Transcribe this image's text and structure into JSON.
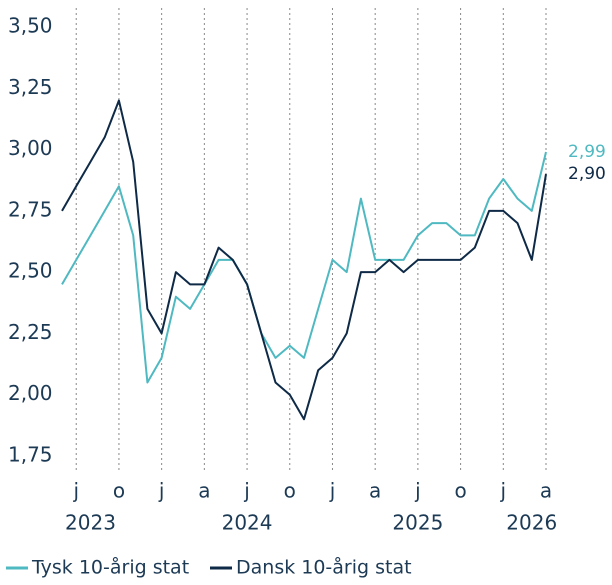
{
  "chart_data": {
    "type": "line",
    "x": [
      "2023-06",
      "2023-07",
      "2023-08",
      "2023-09",
      "2023-10",
      "2023-11",
      "2023-12",
      "2024-01",
      "2024-02",
      "2024-03",
      "2024-04",
      "2024-05",
      "2024-06",
      "2024-07",
      "2024-08",
      "2024-09",
      "2024-10",
      "2024-11",
      "2024-12",
      "2025-01",
      "2025-02",
      "2025-03",
      "2025-04",
      "2025-05",
      "2025-06",
      "2025-07",
      "2025-08",
      "2025-09",
      "2025-10",
      "2025-11",
      "2025-12",
      "2026-01",
      "2026-02",
      "2026-03",
      "2026-04"
    ],
    "series": [
      {
        "name": "Tysk 10-årig stat",
        "color": "#4fb9c1",
        "end_label": "2,99",
        "values": [
          2.45,
          2.55,
          2.65,
          2.75,
          2.85,
          2.65,
          2.05,
          2.15,
          2.4,
          2.35,
          2.45,
          2.55,
          2.55,
          2.45,
          2.25,
          2.15,
          2.2,
          2.15,
          2.35,
          2.55,
          2.5,
          2.8,
          2.55,
          2.55,
          2.55,
          2.65,
          2.7,
          2.7,
          2.65,
          2.65,
          2.8,
          2.88,
          2.8,
          2.75,
          2.99
        ]
      },
      {
        "name": "Dansk 10-årig stat",
        "color": "#0e2a47",
        "end_label": "2,90",
        "values": [
          2.75,
          2.85,
          2.95,
          3.05,
          3.2,
          2.95,
          2.35,
          2.25,
          2.5,
          2.45,
          2.45,
          2.6,
          2.55,
          2.45,
          2.25,
          2.05,
          2.0,
          1.9,
          2.1,
          2.15,
          2.25,
          2.5,
          2.5,
          2.55,
          2.5,
          2.55,
          2.55,
          2.55,
          2.55,
          2.6,
          2.75,
          2.75,
          2.7,
          2.55,
          2.9
        ]
      }
    ],
    "xlim": [
      "2023-06",
      "2026-04"
    ],
    "xticks": [
      {
        "value": "2023-07",
        "label": "j"
      },
      {
        "value": "2023-10",
        "label": "o"
      },
      {
        "value": "2024-01",
        "label": "j"
      },
      {
        "value": "2024-04",
        "label": "a"
      },
      {
        "value": "2024-07",
        "label": "j"
      },
      {
        "value": "2024-10",
        "label": "o"
      },
      {
        "value": "2025-01",
        "label": "j"
      },
      {
        "value": "2025-04",
        "label": "a"
      },
      {
        "value": "2025-07",
        "label": "j"
      },
      {
        "value": "2025-10",
        "label": "o"
      },
      {
        "value": "2026-01",
        "label": "j"
      },
      {
        "value": "2026-04",
        "label": "a"
      }
    ],
    "year_labels": [
      {
        "value": "2023-08",
        "label": "2023"
      },
      {
        "value": "2024-07",
        "label": "2024"
      },
      {
        "value": "2025-07",
        "label": "2025"
      },
      {
        "value": "2026-03",
        "label": "2026"
      }
    ],
    "ylim": [
      1.75,
      3.5
    ],
    "yticks": [
      {
        "value": 3.5,
        "label": "3,50"
      },
      {
        "value": 3.25,
        "label": "3,25"
      },
      {
        "value": 3.0,
        "label": "3,00"
      },
      {
        "value": 2.75,
        "label": "2,75"
      },
      {
        "value": 2.5,
        "label": "2,50"
      },
      {
        "value": 2.25,
        "label": "2,25"
      },
      {
        "value": 2.0,
        "label": "2,00"
      },
      {
        "value": 1.75,
        "label": "1,75"
      }
    ],
    "grid": "x"
  }
}
